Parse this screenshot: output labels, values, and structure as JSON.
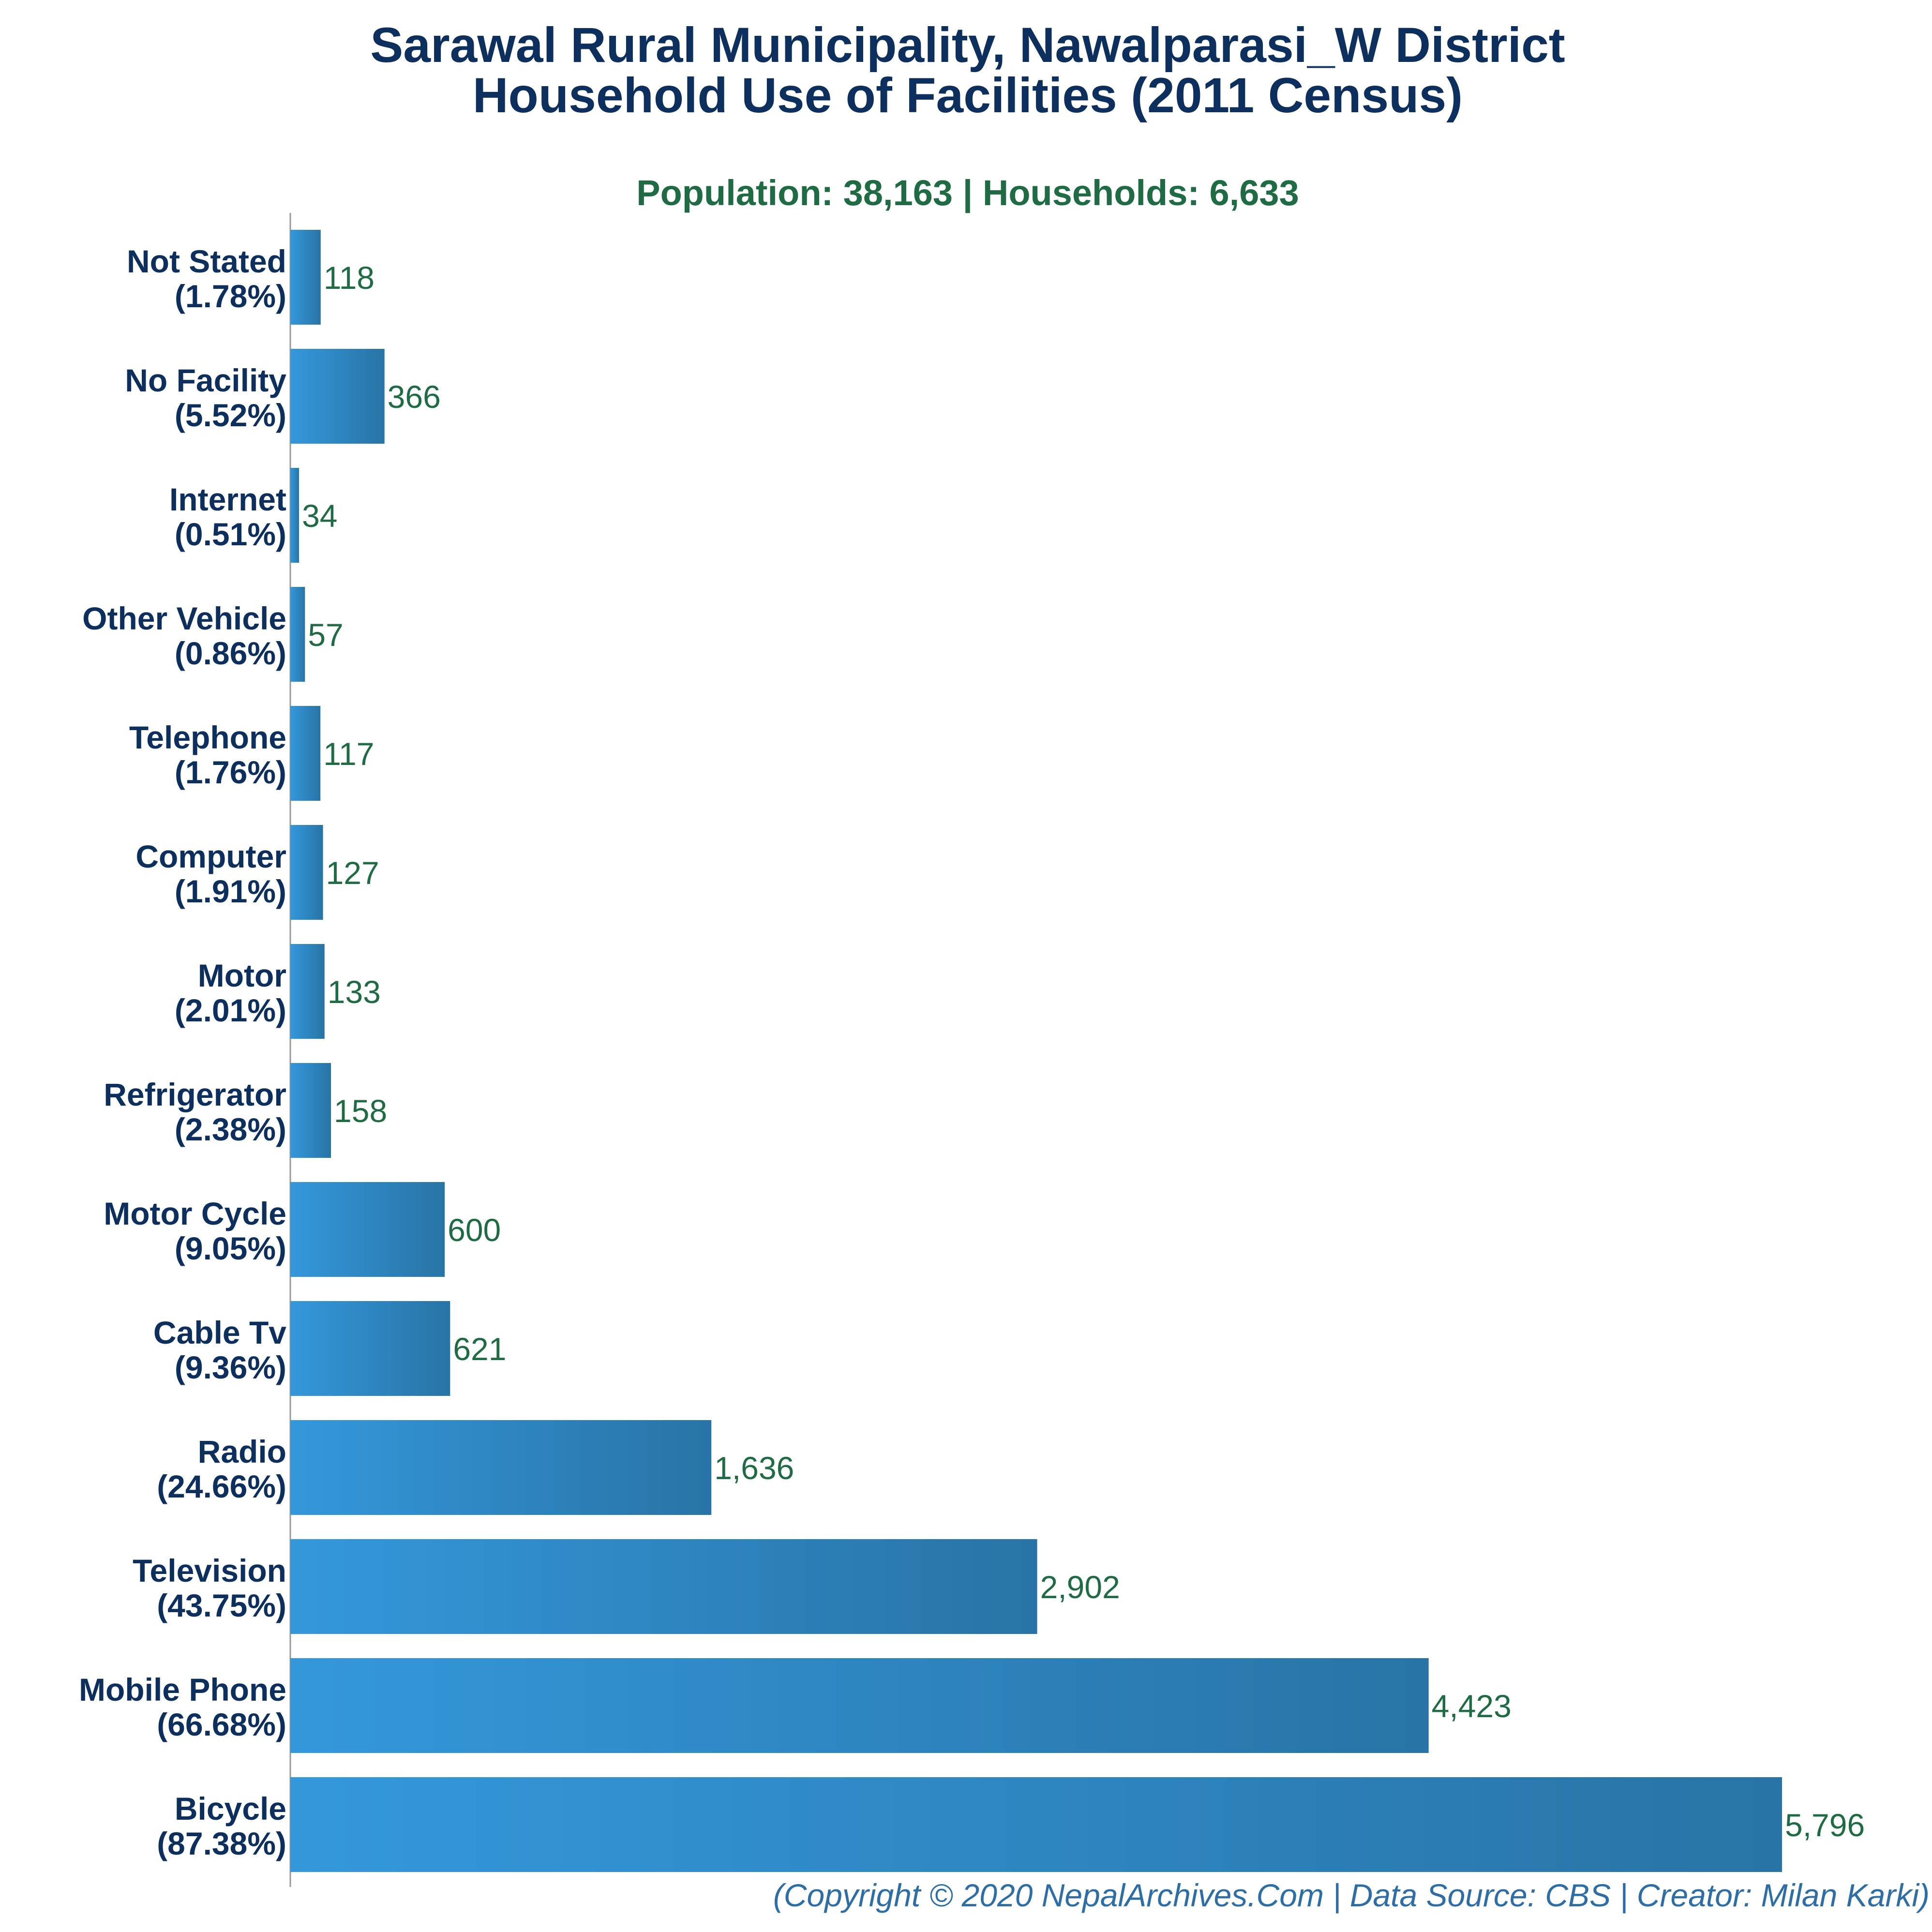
{
  "chart_data": {
    "type": "bar",
    "orientation": "horizontal",
    "title_line1": "Sarawal Rural Municipality, Nawalparasi_W District",
    "title_line2": "Household Use of Facilities (2011 Census)",
    "subtitle": "Population: 38,163 | Households: 6,633",
    "categories": [
      "Not Stated",
      "No Facility",
      "Internet",
      "Other Vehicle",
      "Telephone",
      "Computer",
      "Motor",
      "Refrigerator",
      "Motor Cycle",
      "Cable Tv",
      "Radio",
      "Television",
      "Mobile Phone",
      "Bicycle"
    ],
    "percent_labels": [
      "(1.78%)",
      "(5.52%)",
      "(0.51%)",
      "(0.86%)",
      "(1.76%)",
      "(1.91%)",
      "(2.01%)",
      "(2.38%)",
      "(9.05%)",
      "(9.36%)",
      "(24.66%)",
      "(43.75%)",
      "(66.68%)",
      "(87.38%)"
    ],
    "values": [
      118,
      366,
      34,
      57,
      117,
      127,
      133,
      158,
      600,
      621,
      1636,
      2902,
      4423,
      5796
    ],
    "value_labels": [
      "118",
      "366",
      "34",
      "57",
      "117",
      "127",
      "133",
      "158",
      "600",
      "621",
      "1,636",
      "2,902",
      "4,423",
      "5,796"
    ],
    "xlim": [
      0,
      5796
    ],
    "grid": false,
    "colors": {
      "bar_start": "#3498db",
      "bar_end": "#2874a6",
      "title": "#0d2f5e",
      "subtitle": "#1f6b43",
      "value": "#1f6b43",
      "footer": "#2e6ea6"
    }
  },
  "footer": "(Copyright © 2020 NepalArchives.Com | Data Source: CBS | Creator: Milan Karki)"
}
